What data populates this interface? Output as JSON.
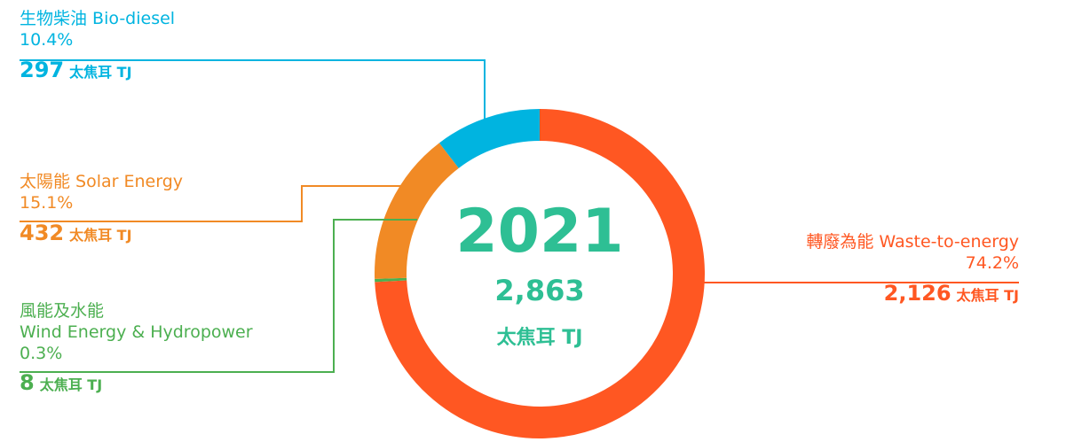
{
  "chart_data": {
    "type": "pie",
    "center": {
      "year": "2021",
      "total": "2,863",
      "unit": "太焦耳 TJ"
    },
    "categories": [
      "轉廢為能 Waste-to-energy",
      "風能及水能 Wind Energy & Hydropower",
      "太陽能 Solar Energy",
      "生物柴油 Bio-diesel"
    ],
    "segments": [
      {
        "label_zh": "轉廢為能",
        "label_en": "Waste-to-energy",
        "name": "轉廢為能 Waste-to-energy",
        "percent": 74.2,
        "percent_label": "74.2%",
        "value": 2126,
        "value_label": "2,126",
        "unit": "太焦耳 TJ",
        "color": "#ff5722"
      },
      {
        "label_zh": "風能及水能",
        "label_en": "Wind Energy & Hydropower",
        "name": "風能及水能 Wind Energy & Hydropower",
        "percent": 0.3,
        "percent_label": "0.3%",
        "value": 8,
        "value_label": "8",
        "unit": "太焦耳 TJ",
        "color": "#4caf50"
      },
      {
        "label_zh": "太陽能",
        "label_en": "Solar Energy",
        "name": "太陽能 Solar Energy",
        "percent": 15.1,
        "percent_label": "15.1%",
        "value": 432,
        "value_label": "432",
        "unit": "太焦耳 TJ",
        "color": "#f18a25"
      },
      {
        "label_zh": "生物柴油",
        "label_en": "Bio-diesel",
        "name": "生物柴油 Bio-diesel",
        "percent": 10.4,
        "percent_label": "10.4%",
        "value": 297,
        "value_label": "297",
        "unit": "太焦耳 TJ",
        "color": "#00b4e0"
      }
    ]
  }
}
